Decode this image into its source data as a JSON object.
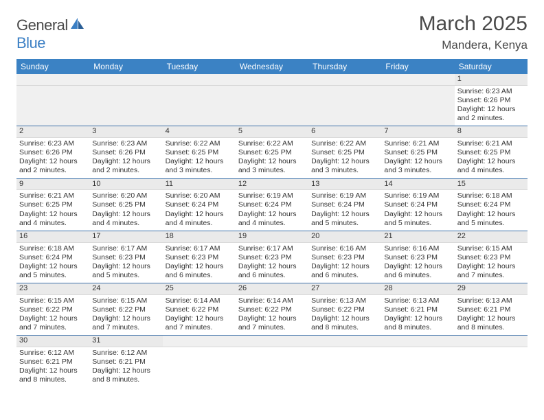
{
  "logo": {
    "word1": "General",
    "word2": "Blue"
  },
  "title": "March 2025",
  "location": "Mandera, Kenya",
  "colors": {
    "header_bg": "#3b82c4",
    "header_text": "#ffffff",
    "row_divider": "#3b6fa8",
    "daynum_bg": "#eaeaea",
    "logo_gray": "#4a4a4a",
    "logo_blue": "#3b7fc4"
  },
  "weekdays": [
    "Sunday",
    "Monday",
    "Tuesday",
    "Wednesday",
    "Thursday",
    "Friday",
    "Saturday"
  ],
  "weeks": [
    [
      null,
      null,
      null,
      null,
      null,
      null,
      {
        "n": "1",
        "sr": "Sunrise: 6:23 AM",
        "ss": "Sunset: 6:26 PM",
        "dl": "Daylight: 12 hours and 2 minutes."
      }
    ],
    [
      {
        "n": "2",
        "sr": "Sunrise: 6:23 AM",
        "ss": "Sunset: 6:26 PM",
        "dl": "Daylight: 12 hours and 2 minutes."
      },
      {
        "n": "3",
        "sr": "Sunrise: 6:23 AM",
        "ss": "Sunset: 6:26 PM",
        "dl": "Daylight: 12 hours and 2 minutes."
      },
      {
        "n": "4",
        "sr": "Sunrise: 6:22 AM",
        "ss": "Sunset: 6:25 PM",
        "dl": "Daylight: 12 hours and 3 minutes."
      },
      {
        "n": "5",
        "sr": "Sunrise: 6:22 AM",
        "ss": "Sunset: 6:25 PM",
        "dl": "Daylight: 12 hours and 3 minutes."
      },
      {
        "n": "6",
        "sr": "Sunrise: 6:22 AM",
        "ss": "Sunset: 6:25 PM",
        "dl": "Daylight: 12 hours and 3 minutes."
      },
      {
        "n": "7",
        "sr": "Sunrise: 6:21 AM",
        "ss": "Sunset: 6:25 PM",
        "dl": "Daylight: 12 hours and 3 minutes."
      },
      {
        "n": "8",
        "sr": "Sunrise: 6:21 AM",
        "ss": "Sunset: 6:25 PM",
        "dl": "Daylight: 12 hours and 4 minutes."
      }
    ],
    [
      {
        "n": "9",
        "sr": "Sunrise: 6:21 AM",
        "ss": "Sunset: 6:25 PM",
        "dl": "Daylight: 12 hours and 4 minutes."
      },
      {
        "n": "10",
        "sr": "Sunrise: 6:20 AM",
        "ss": "Sunset: 6:25 PM",
        "dl": "Daylight: 12 hours and 4 minutes."
      },
      {
        "n": "11",
        "sr": "Sunrise: 6:20 AM",
        "ss": "Sunset: 6:24 PM",
        "dl": "Daylight: 12 hours and 4 minutes."
      },
      {
        "n": "12",
        "sr": "Sunrise: 6:19 AM",
        "ss": "Sunset: 6:24 PM",
        "dl": "Daylight: 12 hours and 4 minutes."
      },
      {
        "n": "13",
        "sr": "Sunrise: 6:19 AM",
        "ss": "Sunset: 6:24 PM",
        "dl": "Daylight: 12 hours and 5 minutes."
      },
      {
        "n": "14",
        "sr": "Sunrise: 6:19 AM",
        "ss": "Sunset: 6:24 PM",
        "dl": "Daylight: 12 hours and 5 minutes."
      },
      {
        "n": "15",
        "sr": "Sunrise: 6:18 AM",
        "ss": "Sunset: 6:24 PM",
        "dl": "Daylight: 12 hours and 5 minutes."
      }
    ],
    [
      {
        "n": "16",
        "sr": "Sunrise: 6:18 AM",
        "ss": "Sunset: 6:24 PM",
        "dl": "Daylight: 12 hours and 5 minutes."
      },
      {
        "n": "17",
        "sr": "Sunrise: 6:17 AM",
        "ss": "Sunset: 6:23 PM",
        "dl": "Daylight: 12 hours and 5 minutes."
      },
      {
        "n": "18",
        "sr": "Sunrise: 6:17 AM",
        "ss": "Sunset: 6:23 PM",
        "dl": "Daylight: 12 hours and 6 minutes."
      },
      {
        "n": "19",
        "sr": "Sunrise: 6:17 AM",
        "ss": "Sunset: 6:23 PM",
        "dl": "Daylight: 12 hours and 6 minutes."
      },
      {
        "n": "20",
        "sr": "Sunrise: 6:16 AM",
        "ss": "Sunset: 6:23 PM",
        "dl": "Daylight: 12 hours and 6 minutes."
      },
      {
        "n": "21",
        "sr": "Sunrise: 6:16 AM",
        "ss": "Sunset: 6:23 PM",
        "dl": "Daylight: 12 hours and 6 minutes."
      },
      {
        "n": "22",
        "sr": "Sunrise: 6:15 AM",
        "ss": "Sunset: 6:23 PM",
        "dl": "Daylight: 12 hours and 7 minutes."
      }
    ],
    [
      {
        "n": "23",
        "sr": "Sunrise: 6:15 AM",
        "ss": "Sunset: 6:22 PM",
        "dl": "Daylight: 12 hours and 7 minutes."
      },
      {
        "n": "24",
        "sr": "Sunrise: 6:15 AM",
        "ss": "Sunset: 6:22 PM",
        "dl": "Daylight: 12 hours and 7 minutes."
      },
      {
        "n": "25",
        "sr": "Sunrise: 6:14 AM",
        "ss": "Sunset: 6:22 PM",
        "dl": "Daylight: 12 hours and 7 minutes."
      },
      {
        "n": "26",
        "sr": "Sunrise: 6:14 AM",
        "ss": "Sunset: 6:22 PM",
        "dl": "Daylight: 12 hours and 7 minutes."
      },
      {
        "n": "27",
        "sr": "Sunrise: 6:13 AM",
        "ss": "Sunset: 6:22 PM",
        "dl": "Daylight: 12 hours and 8 minutes."
      },
      {
        "n": "28",
        "sr": "Sunrise: 6:13 AM",
        "ss": "Sunset: 6:21 PM",
        "dl": "Daylight: 12 hours and 8 minutes."
      },
      {
        "n": "29",
        "sr": "Sunrise: 6:13 AM",
        "ss": "Sunset: 6:21 PM",
        "dl": "Daylight: 12 hours and 8 minutes."
      }
    ],
    [
      {
        "n": "30",
        "sr": "Sunrise: 6:12 AM",
        "ss": "Sunset: 6:21 PM",
        "dl": "Daylight: 12 hours and 8 minutes."
      },
      {
        "n": "31",
        "sr": "Sunrise: 6:12 AM",
        "ss": "Sunset: 6:21 PM",
        "dl": "Daylight: 12 hours and 8 minutes."
      },
      null,
      null,
      null,
      null,
      null
    ]
  ]
}
